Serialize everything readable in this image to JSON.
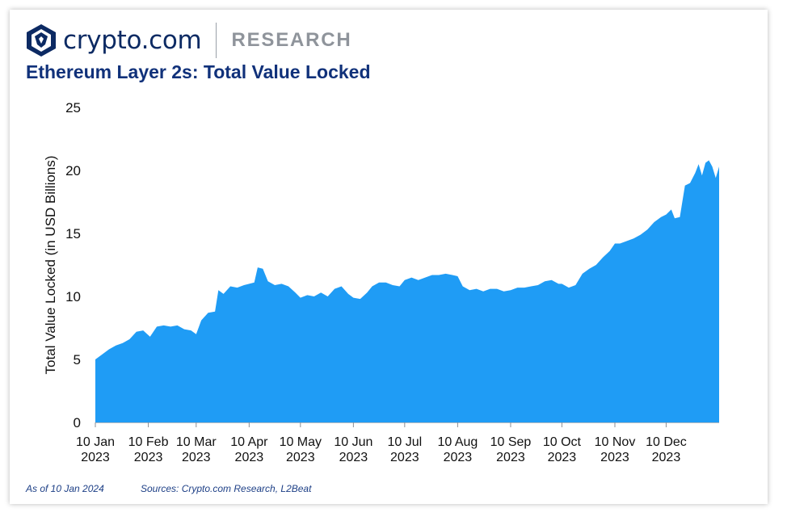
{
  "header": {
    "brand": "crypto.com",
    "section": "RESEARCH",
    "title": "Ethereum Layer 2s: Total Value Locked"
  },
  "footer": {
    "as_of": "As of 10 Jan 2024",
    "sources": "Sources: Crypto.com Research, L2Beat"
  },
  "colors": {
    "area": "#1f9cf5",
    "brand": "#0c2a63",
    "title": "#10317a"
  },
  "chart_data": {
    "type": "area",
    "title": "Ethereum Layer 2s: Total Value Locked",
    "ylabel": "Total Value Locked (in USD Billions)",
    "xlabel": "",
    "ylim": [
      0,
      25
    ],
    "yticks": [
      0,
      5,
      10,
      15,
      20,
      25
    ],
    "xlim": [
      "2023-01-10",
      "2024-01-10"
    ],
    "xticks": [
      {
        "date": "2023-01-10",
        "line1": "10 Jan",
        "line2": "2023"
      },
      {
        "date": "2023-02-10",
        "line1": "10 Feb",
        "line2": "2023"
      },
      {
        "date": "2023-03-10",
        "line1": "10 Mar",
        "line2": "2023"
      },
      {
        "date": "2023-04-10",
        "line1": "10 Apr",
        "line2": "2023"
      },
      {
        "date": "2023-05-10",
        "line1": "10 May",
        "line2": "2023"
      },
      {
        "date": "2023-06-10",
        "line1": "10 Jun",
        "line2": "2023"
      },
      {
        "date": "2023-07-10",
        "line1": "10 Jul",
        "line2": "2023"
      },
      {
        "date": "2023-08-10",
        "line1": "10 Aug",
        "line2": "2023"
      },
      {
        "date": "2023-09-10",
        "line1": "10 Sep",
        "line2": "2023"
      },
      {
        "date": "2023-10-10",
        "line1": "10 Oct",
        "line2": "2023"
      },
      {
        "date": "2023-11-10",
        "line1": "10 Nov",
        "line2": "2023"
      },
      {
        "date": "2023-12-10",
        "line1": "10 Dec",
        "line2": "2023"
      }
    ],
    "grid": false,
    "series": [
      {
        "points": [
          [
            "2023-01-10",
            5.0
          ],
          [
            "2023-01-14",
            5.4
          ],
          [
            "2023-01-18",
            5.8
          ],
          [
            "2023-01-22",
            6.1
          ],
          [
            "2023-01-26",
            6.3
          ],
          [
            "2023-01-30",
            6.6
          ],
          [
            "2023-02-03",
            7.2
          ],
          [
            "2023-02-07",
            7.3
          ],
          [
            "2023-02-11",
            6.8
          ],
          [
            "2023-02-15",
            7.6
          ],
          [
            "2023-02-19",
            7.7
          ],
          [
            "2023-02-23",
            7.6
          ],
          [
            "2023-02-27",
            7.7
          ],
          [
            "2023-03-03",
            7.4
          ],
          [
            "2023-03-07",
            7.3
          ],
          [
            "2023-03-10",
            7.0
          ],
          [
            "2023-03-13",
            8.1
          ],
          [
            "2023-03-17",
            8.7
          ],
          [
            "2023-03-21",
            8.8
          ],
          [
            "2023-03-23",
            10.5
          ],
          [
            "2023-03-26",
            10.2
          ],
          [
            "2023-03-30",
            10.8
          ],
          [
            "2023-04-03",
            10.7
          ],
          [
            "2023-04-07",
            10.9
          ],
          [
            "2023-04-10",
            11.0
          ],
          [
            "2023-04-13",
            11.1
          ],
          [
            "2023-04-15",
            12.3
          ],
          [
            "2023-04-18",
            12.2
          ],
          [
            "2023-04-21",
            11.2
          ],
          [
            "2023-04-25",
            10.9
          ],
          [
            "2023-04-29",
            11.0
          ],
          [
            "2023-05-03",
            10.8
          ],
          [
            "2023-05-07",
            10.3
          ],
          [
            "2023-05-10",
            9.9
          ],
          [
            "2023-05-14",
            10.1
          ],
          [
            "2023-05-18",
            10.0
          ],
          [
            "2023-05-22",
            10.3
          ],
          [
            "2023-05-26",
            10.0
          ],
          [
            "2023-05-30",
            10.6
          ],
          [
            "2023-06-03",
            10.8
          ],
          [
            "2023-06-07",
            10.2
          ],
          [
            "2023-06-10",
            9.9
          ],
          [
            "2023-06-14",
            9.8
          ],
          [
            "2023-06-18",
            10.3
          ],
          [
            "2023-06-21",
            10.8
          ],
          [
            "2023-06-25",
            11.1
          ],
          [
            "2023-06-29",
            11.1
          ],
          [
            "2023-07-03",
            10.9
          ],
          [
            "2023-07-07",
            10.8
          ],
          [
            "2023-07-10",
            11.3
          ],
          [
            "2023-07-14",
            11.5
          ],
          [
            "2023-07-18",
            11.3
          ],
          [
            "2023-07-22",
            11.5
          ],
          [
            "2023-07-26",
            11.7
          ],
          [
            "2023-07-30",
            11.7
          ],
          [
            "2023-08-03",
            11.8
          ],
          [
            "2023-08-07",
            11.7
          ],
          [
            "2023-08-10",
            11.6
          ],
          [
            "2023-08-13",
            10.8
          ],
          [
            "2023-08-17",
            10.5
          ],
          [
            "2023-08-21",
            10.6
          ],
          [
            "2023-08-25",
            10.4
          ],
          [
            "2023-08-29",
            10.6
          ],
          [
            "2023-09-02",
            10.6
          ],
          [
            "2023-09-06",
            10.4
          ],
          [
            "2023-09-10",
            10.5
          ],
          [
            "2023-09-14",
            10.7
          ],
          [
            "2023-09-18",
            10.7
          ],
          [
            "2023-09-22",
            10.8
          ],
          [
            "2023-09-26",
            10.9
          ],
          [
            "2023-09-30",
            11.2
          ],
          [
            "2023-10-04",
            11.3
          ],
          [
            "2023-10-08",
            11.0
          ],
          [
            "2023-10-10",
            11.0
          ],
          [
            "2023-10-14",
            10.7
          ],
          [
            "2023-10-18",
            10.9
          ],
          [
            "2023-10-22",
            11.8
          ],
          [
            "2023-10-26",
            12.2
          ],
          [
            "2023-10-30",
            12.5
          ],
          [
            "2023-11-03",
            13.1
          ],
          [
            "2023-11-07",
            13.6
          ],
          [
            "2023-11-10",
            14.2
          ],
          [
            "2023-11-13",
            14.2
          ],
          [
            "2023-11-17",
            14.4
          ],
          [
            "2023-11-21",
            14.6
          ],
          [
            "2023-11-25",
            14.9
          ],
          [
            "2023-11-29",
            15.3
          ],
          [
            "2023-12-03",
            15.9
          ],
          [
            "2023-12-07",
            16.3
          ],
          [
            "2023-12-10",
            16.5
          ],
          [
            "2023-12-13",
            16.9
          ],
          [
            "2023-12-15",
            16.2
          ],
          [
            "2023-12-18",
            16.3
          ],
          [
            "2023-12-21",
            18.8
          ],
          [
            "2023-12-24",
            19.0
          ],
          [
            "2023-12-27",
            19.8
          ],
          [
            "2023-12-29",
            20.5
          ],
          [
            "2023-12-31",
            19.6
          ],
          [
            "2024-01-02",
            20.6
          ],
          [
            "2024-01-04",
            20.8
          ],
          [
            "2024-01-06",
            20.3
          ],
          [
            "2024-01-08",
            19.4
          ],
          [
            "2024-01-10",
            20.3
          ]
        ]
      }
    ]
  }
}
